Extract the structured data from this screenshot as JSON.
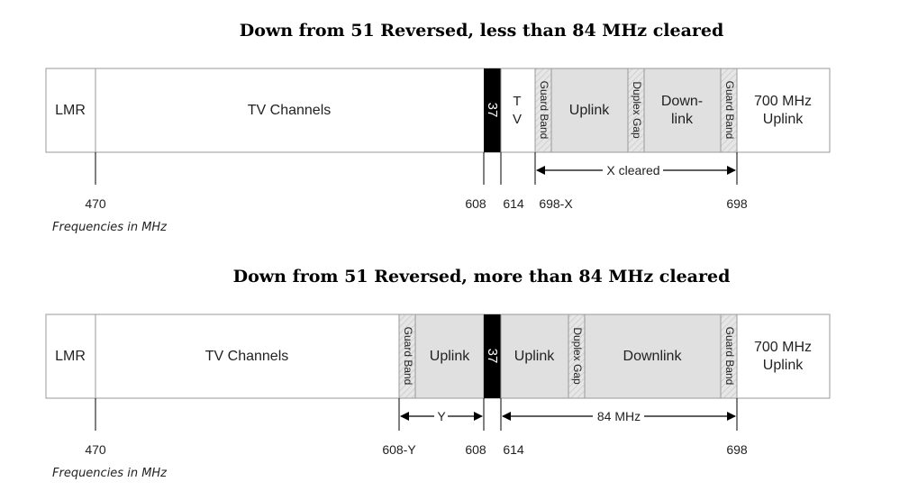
{
  "diagram1": {
    "title": "Down from 51 Reversed, less than 84 MHz cleared",
    "bands": {
      "lmr": "LMR",
      "tv_channels": "TV Channels",
      "ch37": "37",
      "tv_t": "T",
      "tv_v": "V",
      "guard_band_left": "Guard Band",
      "uplink": "Uplink",
      "duplex_gap": "Duplex Gap",
      "downlink_1": "Down-",
      "downlink_2": "link",
      "guard_band_right": "Guard Band",
      "mhz700_1": "700 MHz",
      "mhz700_2": "Uplink"
    },
    "span_label": "X cleared",
    "ticks": {
      "f470": "470",
      "f608": "608",
      "f614": "614",
      "f698x": "698-X",
      "f698": "698"
    },
    "note": "Frequencies in MHz"
  },
  "diagram2": {
    "title": "Down from 51 Reversed, more than 84 MHz cleared",
    "bands": {
      "lmr": "LMR",
      "tv_channels": "TV Channels",
      "guard_band_left": "Guard Band",
      "uplink_left": "Uplink",
      "ch37": "37",
      "uplink_right": "Uplink",
      "duplex_gap": "Duplex Gap",
      "downlink": "Downlink",
      "guard_band_right": "Guard Band",
      "mhz700_1": "700 MHz",
      "mhz700_2": "Uplink"
    },
    "span_y_label": "Y",
    "span_84_label": "84 MHz",
    "ticks": {
      "f470": "470",
      "f608y": "608-Y",
      "f608": "608",
      "f614": "614",
      "f698": "698"
    },
    "note": "Frequencies in MHz"
  },
  "colors": {
    "band_fill": "#e0e0e0",
    "channel37": "#000000",
    "outline": "#999999"
  }
}
